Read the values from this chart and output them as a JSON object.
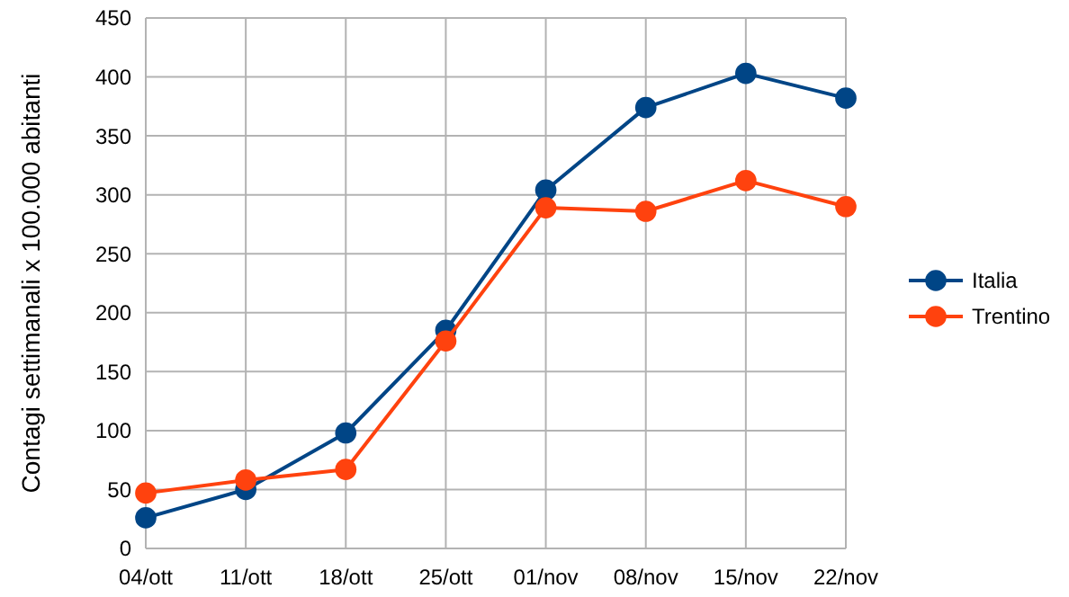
{
  "chart_data": {
    "type": "line",
    "ylabel": "Contagi settimanali x 100.000 abitanti",
    "categories": [
      "04/ott",
      "11/ott",
      "18/ott",
      "25/ott",
      "01/nov",
      "08/nov",
      "15/nov",
      "22/nov"
    ],
    "series": [
      {
        "name": "Italia",
        "color": "#004586",
        "values": [
          26,
          50,
          98,
          185,
          304,
          374,
          403,
          382
        ]
      },
      {
        "name": "Trentino",
        "color": "#ff420e",
        "values": [
          47,
          58,
          67,
          176,
          289,
          286,
          312,
          290
        ]
      }
    ],
    "ylim": [
      0,
      450
    ],
    "yticks": [
      0,
      50,
      100,
      150,
      200,
      250,
      300,
      350,
      400,
      450
    ],
    "grid": true,
    "legend": "right",
    "marker": "circle",
    "line_style": "solid"
  }
}
